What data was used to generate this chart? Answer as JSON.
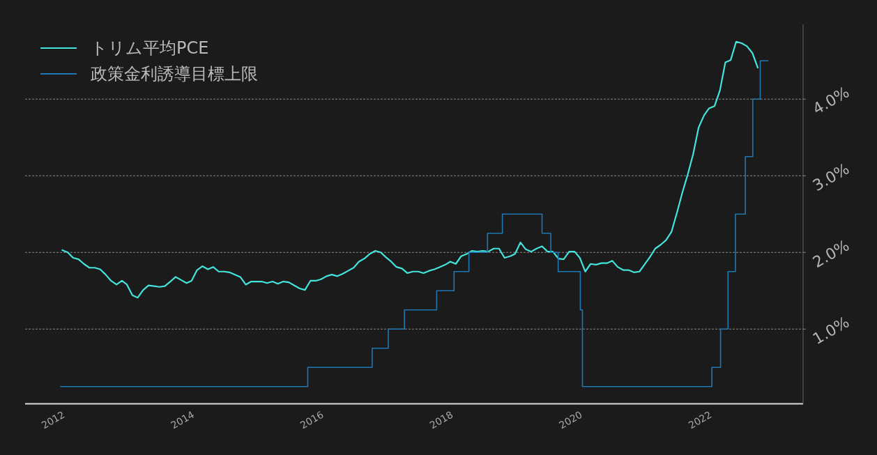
{
  "chart_data": {
    "type": "line",
    "x": [
      "2012-03",
      "2012-04",
      "2012-05",
      "2012-06",
      "2012-07",
      "2012-08",
      "2012-09",
      "2012-10",
      "2012-11",
      "2012-12",
      "2013-01",
      "2013-02",
      "2013-03",
      "2013-04",
      "2013-05",
      "2013-06",
      "2013-07",
      "2013-08",
      "2013-09",
      "2013-10",
      "2013-11",
      "2013-12",
      "2014-01",
      "2014-02",
      "2014-03",
      "2014-04",
      "2014-05",
      "2014-06",
      "2014-07",
      "2014-08",
      "2014-09",
      "2014-10",
      "2014-11",
      "2014-12",
      "2015-01",
      "2015-02",
      "2015-03",
      "2015-04",
      "2015-05",
      "2015-06",
      "2015-07",
      "2015-08",
      "2015-09",
      "2015-10",
      "2015-11",
      "2015-12",
      "2016-01",
      "2016-02",
      "2016-03",
      "2016-04",
      "2016-05",
      "2016-06",
      "2016-07",
      "2016-08",
      "2016-09",
      "2016-10",
      "2016-11",
      "2016-12",
      "2017-01",
      "2017-02",
      "2017-03",
      "2017-04",
      "2017-05",
      "2017-06",
      "2017-07",
      "2017-08",
      "2017-09",
      "2017-10",
      "2017-11",
      "2017-12",
      "2018-01",
      "2018-02",
      "2018-03",
      "2018-04",
      "2018-05",
      "2018-06",
      "2018-07",
      "2018-08",
      "2018-09",
      "2018-10",
      "2018-11",
      "2018-12",
      "2019-01",
      "2019-02",
      "2019-03",
      "2019-04",
      "2019-05",
      "2019-06",
      "2019-07",
      "2019-08",
      "2019-09",
      "2019-10",
      "2019-11",
      "2019-12",
      "2020-01",
      "2020-02",
      "2020-03",
      "2020-04",
      "2020-05",
      "2020-06",
      "2020-07",
      "2020-08",
      "2020-09",
      "2020-10",
      "2020-11",
      "2020-12",
      "2021-01",
      "2021-02",
      "2021-03",
      "2021-04",
      "2021-05",
      "2021-06",
      "2021-07",
      "2021-08",
      "2021-09",
      "2021-10",
      "2021-11",
      "2021-12",
      "2022-01",
      "2022-02",
      "2022-03",
      "2022-04",
      "2022-05",
      "2022-06",
      "2022-07",
      "2022-08",
      "2022-09",
      "2022-10",
      "2022-11",
      "2022-12"
    ],
    "series": [
      {
        "name": "トリム平均PCE",
        "color": "#44e3db",
        "values": [
          2.03,
          2.0,
          1.93,
          1.91,
          1.85,
          1.8,
          1.8,
          1.78,
          1.71,
          1.63,
          1.58,
          1.63,
          1.58,
          1.44,
          1.41,
          1.51,
          1.57,
          1.56,
          1.55,
          1.56,
          1.62,
          1.68,
          1.64,
          1.6,
          1.63,
          1.77,
          1.82,
          1.78,
          1.81,
          1.75,
          1.75,
          1.74,
          1.71,
          1.68,
          1.58,
          1.62,
          1.62,
          1.62,
          1.6,
          1.62,
          1.59,
          1.62,
          1.61,
          1.57,
          1.53,
          1.51,
          1.63,
          1.63,
          1.65,
          1.69,
          1.71,
          1.69,
          1.72,
          1.76,
          1.8,
          1.88,
          1.92,
          1.98,
          2.02,
          2.0,
          1.94,
          1.88,
          1.81,
          1.79,
          1.73,
          1.75,
          1.75,
          1.73,
          1.76,
          1.78,
          1.81,
          1.84,
          1.88,
          1.85,
          1.95,
          1.98,
          2.02,
          2.01,
          2.02,
          2.01,
          2.05,
          2.05,
          1.93,
          1.95,
          1.98,
          2.13,
          2.04,
          2.01,
          2.05,
          2.08,
          2.01,
          2.01,
          1.92,
          1.91,
          2.01,
          2.01,
          1.93,
          1.75,
          1.85,
          1.84,
          1.86,
          1.86,
          1.89,
          1.81,
          1.77,
          1.77,
          1.74,
          1.75,
          1.84,
          1.94,
          2.05,
          2.1,
          2.16,
          2.27,
          2.52,
          2.78,
          3.02,
          3.28,
          3.63,
          3.79,
          3.88,
          3.91,
          4.11,
          4.48,
          4.51,
          4.75,
          4.73,
          4.69,
          4.6,
          4.41
        ]
      },
      {
        "name": "政策金利誘導目標上限",
        "type": "step",
        "color": "#1f77b4",
        "x": [
          "2012-02-20",
          "2015-12-17",
          "2016-12-15",
          "2017-03-16",
          "2017-06-15",
          "2017-12-14",
          "2018-03-22",
          "2018-06-14",
          "2018-09-27",
          "2018-12-20",
          "2019-08-01",
          "2019-09-19",
          "2019-10-31",
          "2020-03-04",
          "2020-03-16",
          "2022-03-17",
          "2022-05-05",
          "2022-06-16",
          "2022-07-28",
          "2022-09-22",
          "2022-11-03",
          "2022-12-15",
          "2023-01-27"
        ],
        "values": [
          0.25,
          0.5,
          0.75,
          1,
          1.25,
          1.5,
          1.75,
          2,
          2.25,
          2.5,
          2.25,
          2,
          1.75,
          1.25,
          0.25,
          0.5,
          1,
          1.75,
          2.5,
          3.25,
          4,
          4.5,
          4.5
        ]
      }
    ],
    "xlim": [
      "2011-08-04",
      "2023-08-14"
    ],
    "xticks": [
      "2012",
      "2014",
      "2016",
      "2018",
      "2020",
      "2022"
    ],
    "ylim": [
      0.025,
      4.975
    ],
    "yticks": [
      {
        "value": 1,
        "label": "1.0%"
      },
      {
        "value": 2,
        "label": "2.0%"
      },
      {
        "value": 3,
        "label": "3.0%"
      },
      {
        "value": 4,
        "label": "4.0%"
      }
    ],
    "grid": "y",
    "legend": "top left"
  }
}
